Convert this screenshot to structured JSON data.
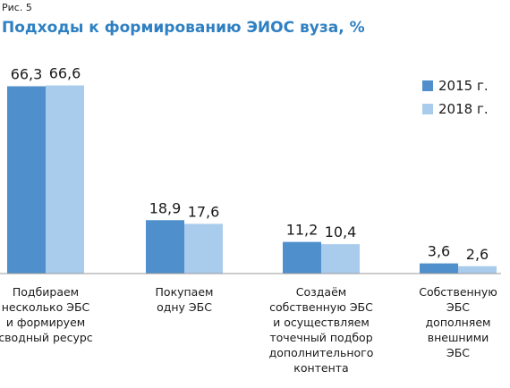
{
  "figure_label": "Рис. 5",
  "chart_data": {
    "type": "bar",
    "title": "Подходы к формированию ЭИОС вуза, %",
    "xlabel": "",
    "ylabel": "",
    "ylim": [
      0,
      70
    ],
    "grid": false,
    "legend_position": "top-right",
    "categories": [
      [
        "Подбираем",
        "несколько ЭБС",
        "и формируем",
        "сводный ресурс"
      ],
      [
        "Покупаем",
        "одну ЭБС"
      ],
      [
        "Создаём",
        "собственную ЭБС",
        "и осуществляем",
        "точечный подбор",
        "дополнительного",
        "контента"
      ],
      [
        "Собственную",
        "ЭБС",
        "дополняем",
        "внешними",
        "ЭБС"
      ]
    ],
    "series": [
      {
        "name": "2015 г.",
        "color": "#4f8fcb",
        "values": [
          66.3,
          18.9,
          11.2,
          3.6
        ],
        "labels": [
          "66,3",
          "18,9",
          "11,2",
          "3,6"
        ]
      },
      {
        "name": "2018 г.",
        "color": "#a9cbec",
        "values": [
          66.6,
          17.6,
          10.4,
          2.6
        ],
        "labels": [
          "66,6",
          "17,6",
          "10,4",
          "2,6"
        ]
      }
    ]
  }
}
